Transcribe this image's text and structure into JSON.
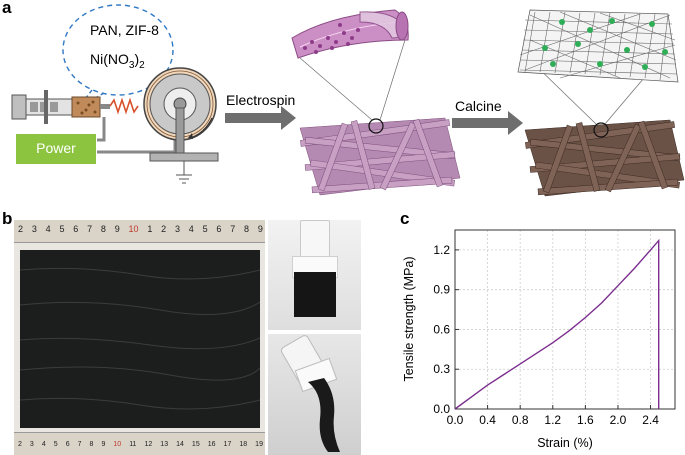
{
  "panel_a": {
    "letter": "a",
    "bubble_line1": "PAN, ZIF-8",
    "bubble_line2_main": "Ni(NO",
    "bubble_line2_sub": "3",
    "bubble_line2_close": ")",
    "bubble_line2_sub2": "2",
    "power_label": "Power",
    "arrow1_label": "Electrospin",
    "arrow2_label": "Calcine"
  },
  "panel_b": {
    "letter": "b",
    "ruler_top_digits": [
      "2",
      "3",
      "4",
      "5",
      "6",
      "7",
      "8",
      "9",
      "10",
      "1",
      "2",
      "3",
      "4",
      "5",
      "6",
      "7",
      "8",
      "9"
    ],
    "ruler_bottom_digits": [
      "2",
      "3",
      "4",
      "5",
      "6",
      "7",
      "8",
      "9",
      "10",
      "11",
      "12",
      "13",
      "14",
      "15",
      "16",
      "17",
      "18",
      "19"
    ]
  },
  "panel_c": {
    "letter": "c"
  },
  "chart_data": {
    "type": "line",
    "xlabel": "Strain (%)",
    "ylabel": "Tensile strength (MPa)",
    "xlim": [
      0,
      2.7
    ],
    "ylim": [
      0,
      1.35
    ],
    "xticks": [
      "0.0",
      "0.4",
      "0.8",
      "1.2",
      "1.6",
      "2.0",
      "2.4"
    ],
    "xtick_values": [
      0,
      0.4,
      0.8,
      1.2,
      1.6,
      2.0,
      2.4
    ],
    "yticks": [
      "0.0",
      "0.3",
      "0.6",
      "0.9",
      "1.2"
    ],
    "ytick_values": [
      0,
      0.3,
      0.6,
      0.9,
      1.2
    ],
    "grid": true,
    "series": [
      {
        "color": "#7b2d8e",
        "x": [
          0,
          0.2,
          0.4,
          0.6,
          0.8,
          1.0,
          1.2,
          1.4,
          1.6,
          1.8,
          2.0,
          2.2,
          2.4,
          2.5,
          2.5
        ],
        "y": [
          0,
          0.09,
          0.18,
          0.26,
          0.34,
          0.42,
          0.5,
          0.59,
          0.69,
          0.8,
          0.93,
          1.06,
          1.2,
          1.27,
          0
        ]
      }
    ]
  }
}
